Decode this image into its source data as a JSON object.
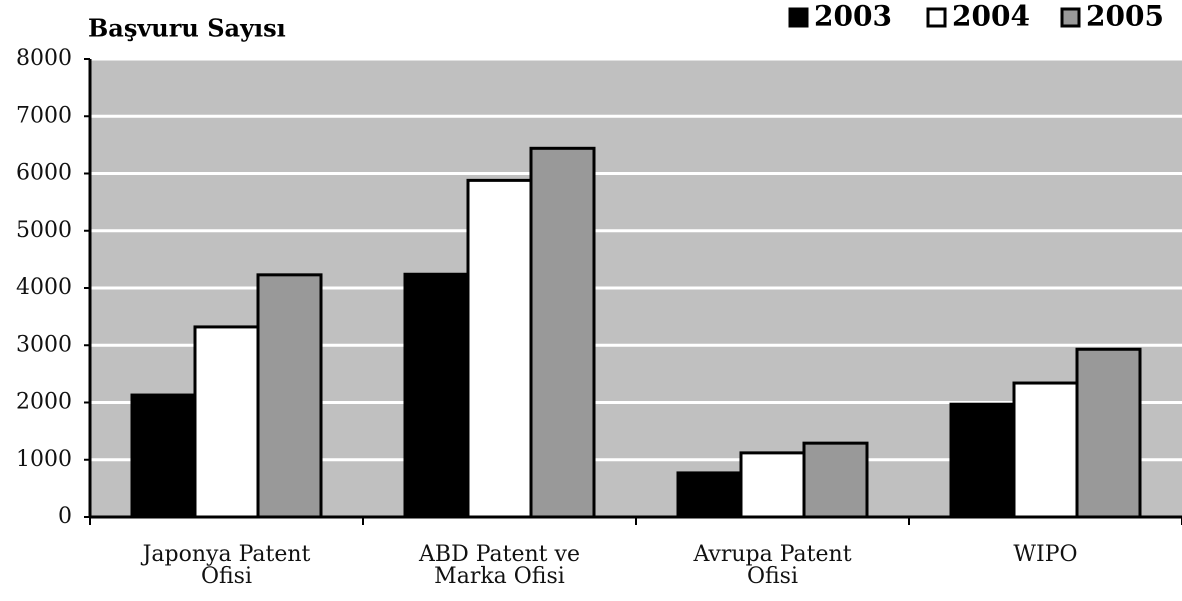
{
  "chart_data": {
    "type": "bar",
    "title": "Başvuru Sayısı",
    "categories": [
      "Japonya Patent\nOfisi",
      "ABD Patent ve\nMarka Ofisi",
      "Avrupa Patent\nOfisi",
      "WIPO"
    ],
    "series": [
      {
        "name": "2003",
        "color": "#000000",
        "values": [
          2130,
          4240,
          770,
          1970
        ]
      },
      {
        "name": "2004",
        "color": "#ffffff",
        "values": [
          3320,
          5880,
          1120,
          2340
        ]
      },
      {
        "name": "2005",
        "color": "#999999",
        "values": [
          4230,
          6440,
          1290,
          2930
        ]
      }
    ],
    "ylim": [
      0,
      8000
    ],
    "yticks": [
      0,
      1000,
      2000,
      3000,
      4000,
      5000,
      6000,
      7000,
      8000
    ],
    "grid": true,
    "legend": "top-right"
  }
}
